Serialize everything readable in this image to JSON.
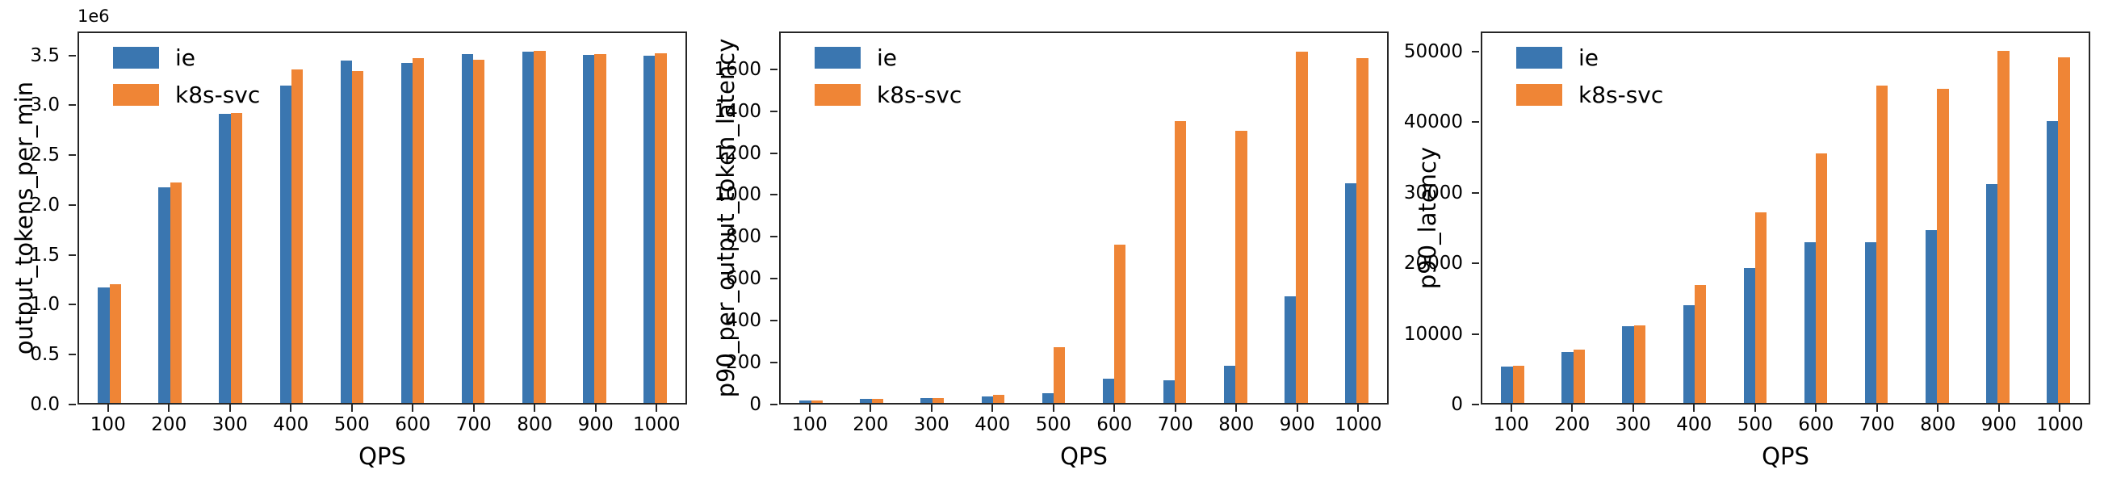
{
  "figure": {
    "background": "#ffffff",
    "axis_color": "#262626",
    "text_color": "#000000"
  },
  "legend": {
    "items": [
      {
        "label": "ie",
        "color": "#3a76b0"
      },
      {
        "label": "k8s-svc",
        "color": "#ef8536"
      }
    ],
    "position": "upper left"
  },
  "chart_data": [
    {
      "type": "bar",
      "title": "",
      "ylabel": "output_tokens_per_min",
      "xlabel": "QPS",
      "offset_text": "1e6",
      "grid": false,
      "legend_position": "upper left",
      "categories": [
        "100",
        "200",
        "300",
        "400",
        "500",
        "600",
        "700",
        "800",
        "900",
        "1000"
      ],
      "series": [
        {
          "name": "ie",
          "color": "#3a76b0",
          "values": [
            1170000,
            2180000,
            2920000,
            3210000,
            3460000,
            3440000,
            3530000,
            3550000,
            3520000,
            3510000
          ]
        },
        {
          "name": "k8s-svc",
          "color": "#ef8536",
          "values": [
            1200000,
            2230000,
            2930000,
            3370000,
            3360000,
            3490000,
            3470000,
            3560000,
            3530000,
            3540000
          ]
        }
      ],
      "ylim": [
        0,
        3740000
      ],
      "yticks": [
        {
          "v": 0,
          "label": "0.0"
        },
        {
          "v": 500000,
          "label": "0.5"
        },
        {
          "v": 1000000,
          "label": "1.0"
        },
        {
          "v": 1500000,
          "label": "1.5"
        },
        {
          "v": 2000000,
          "label": "2.0"
        },
        {
          "v": 2500000,
          "label": "2.5"
        },
        {
          "v": 3000000,
          "label": "3.0"
        },
        {
          "v": 3500000,
          "label": "3.5"
        }
      ]
    },
    {
      "type": "bar",
      "title": "",
      "ylabel": "p90_per_output_token_latency",
      "xlabel": "QPS",
      "offset_text": "",
      "grid": false,
      "legend_position": "upper left",
      "categories": [
        "100",
        "200",
        "300",
        "400",
        "500",
        "600",
        "700",
        "800",
        "900",
        "1000"
      ],
      "series": [
        {
          "name": "ie",
          "color": "#3a76b0",
          "values": [
            10,
            18,
            25,
            33,
            48,
            117,
            107,
            177,
            515,
            1057
          ]
        },
        {
          "name": "k8s-svc",
          "color": "#ef8536",
          "values": [
            10,
            18,
            25,
            37,
            270,
            760,
            1355,
            1310,
            1690,
            1660
          ]
        }
      ],
      "ylim": [
        0,
        1780
      ],
      "yticks": [
        {
          "v": 0,
          "label": "0"
        },
        {
          "v": 200,
          "label": "200"
        },
        {
          "v": 400,
          "label": "400"
        },
        {
          "v": 600,
          "label": "600"
        },
        {
          "v": 800,
          "label": "800"
        },
        {
          "v": 1000,
          "label": "1000"
        },
        {
          "v": 1200,
          "label": "1200"
        },
        {
          "v": 1400,
          "label": "1400"
        },
        {
          "v": 1600,
          "label": "1600"
        }
      ]
    },
    {
      "type": "bar",
      "title": "",
      "ylabel": "p90_latency",
      "xlabel": "QPS",
      "offset_text": "",
      "grid": false,
      "legend_position": "upper left",
      "categories": [
        "100",
        "200",
        "300",
        "400",
        "500",
        "600",
        "700",
        "800",
        "900",
        "1000"
      ],
      "series": [
        {
          "name": "ie",
          "color": "#3a76b0",
          "values": [
            5200,
            7300,
            10900,
            13900,
            19200,
            23000,
            22900,
            24700,
            31300,
            40200
          ]
        },
        {
          "name": "k8s-svc",
          "color": "#ef8536",
          "values": [
            5350,
            7600,
            11100,
            16800,
            27200,
            35600,
            45300,
            44800,
            50300,
            49400
          ]
        }
      ],
      "ylim": [
        0,
        52800
      ],
      "yticks": [
        {
          "v": 0,
          "label": "0"
        },
        {
          "v": 10000,
          "label": "10000"
        },
        {
          "v": 20000,
          "label": "20000"
        },
        {
          "v": 30000,
          "label": "30000"
        },
        {
          "v": 40000,
          "label": "40000"
        },
        {
          "v": 50000,
          "label": "50000"
        }
      ]
    }
  ]
}
